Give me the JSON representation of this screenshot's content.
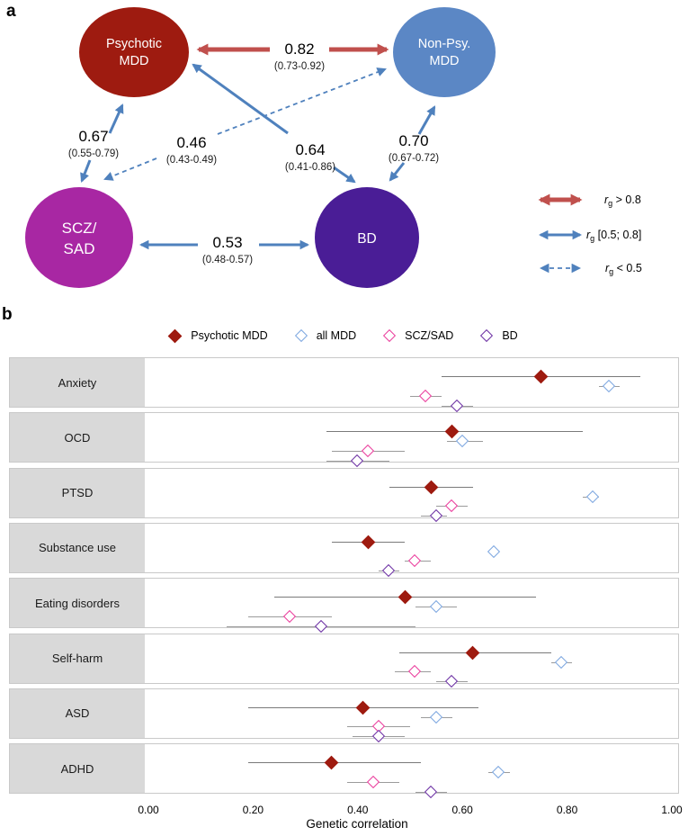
{
  "panel_a": {
    "label": "a",
    "nodes": [
      {
        "name": "Psychotic MDD",
        "line1": "Psychotic",
        "line2": "MDD",
        "color": "#9E1B10"
      },
      {
        "name": "Non-Psy. MDD",
        "line1": "Non-Psy.",
        "line2": "MDD",
        "color": "#5B87C5"
      },
      {
        "name": "SCZ/SAD",
        "line1": "SCZ/",
        "line2": "SAD",
        "color": "#A827A3"
      },
      {
        "name": "BD",
        "line1": "BD",
        "line2": "",
        "color": "#4A1D96"
      }
    ],
    "edges": [
      {
        "from": "Psychotic MDD",
        "to": "Non-Psy. MDD",
        "value": "0.82",
        "ci": "(0.73-0.92)",
        "style": "red-solid"
      },
      {
        "from": "Psychotic MDD",
        "to": "SCZ/SAD",
        "value": "0.67",
        "ci": "(0.55-0.79)",
        "style": "blue-solid"
      },
      {
        "from": "Non-Psy. MDD",
        "to": "SCZ/SAD",
        "value": "0.46",
        "ci": "(0.43-0.49)",
        "style": "blue-dashed"
      },
      {
        "from": "Psychotic MDD",
        "to": "BD",
        "value": "0.64",
        "ci": "(0.41-0.86)",
        "style": "blue-solid"
      },
      {
        "from": "Non-Psy. MDD",
        "to": "BD",
        "value": "0.70",
        "ci": "(0.67-0.72)",
        "style": "blue-solid"
      },
      {
        "from": "SCZ/SAD",
        "to": "BD",
        "value": "0.53",
        "ci": "(0.48-0.57)",
        "style": "blue-solid"
      }
    ],
    "legend": [
      {
        "r": "r",
        "sub": "g",
        "rest": " > 0.8",
        "style": "red-solid"
      },
      {
        "r": "r",
        "sub": "g",
        "rest": " [0.5; 0.8]",
        "style": "blue-solid"
      },
      {
        "r": "r",
        "sub": "g",
        "rest": " < 0.5",
        "style": "blue-dashed"
      }
    ],
    "colors": {
      "red_arrow": "#C0504D",
      "blue_arrow": "#4F81BD"
    }
  },
  "panel_b": {
    "label": "b"
  },
  "chart_data": {
    "type": "scatter",
    "subtype": "forest-plot",
    "xlabel": "Genetic correlation",
    "xlim": [
      0,
      1
    ],
    "xticks": [
      "0.00",
      "0.20",
      "0.40",
      "0.60",
      "0.80",
      "1.00"
    ],
    "grid": false,
    "legend_position": "top",
    "categories": [
      "Anxiety",
      "OCD",
      "PTSD",
      "Substance use",
      "Eating disorders",
      "Self-harm",
      "ASD",
      "ADHD"
    ],
    "series": [
      {
        "name": "Psychotic MDD",
        "marker": "filled-diamond",
        "color": "#9E1B10",
        "ci_color": "#7a7a7a",
        "values": [
          0.75,
          0.58,
          0.54,
          0.42,
          0.49,
          0.62,
          0.41,
          0.35
        ],
        "ci_low": [
          0.56,
          0.34,
          0.46,
          0.35,
          0.24,
          0.48,
          0.19,
          0.19
        ],
        "ci_high": [
          0.94,
          0.83,
          0.62,
          0.49,
          0.74,
          0.77,
          0.63,
          0.52
        ]
      },
      {
        "name": "all MDD",
        "marker": "open-diamond",
        "color": "#7CA6E0",
        "ci_color": "#9b9b9b",
        "values": [
          0.88,
          0.6,
          0.85,
          0.66,
          0.55,
          0.79,
          0.55,
          0.67
        ],
        "ci_low": [
          0.86,
          0.57,
          0.83,
          0.65,
          0.51,
          0.77,
          0.52,
          0.65
        ],
        "ci_high": [
          0.9,
          0.64,
          0.86,
          0.67,
          0.59,
          0.81,
          0.58,
          0.69
        ]
      },
      {
        "name": "SCZ/SAD",
        "marker": "open-diamond",
        "color": "#EA3C9C",
        "ci_color": "#9b9b9b",
        "values": [
          0.53,
          0.42,
          0.58,
          0.51,
          0.27,
          0.51,
          0.44,
          0.43
        ],
        "ci_low": [
          0.5,
          0.35,
          0.55,
          0.49,
          0.19,
          0.47,
          0.38,
          0.38
        ],
        "ci_high": [
          0.56,
          0.49,
          0.61,
          0.54,
          0.35,
          0.54,
          0.5,
          0.48
        ]
      },
      {
        "name": "BD",
        "marker": "open-diamond",
        "color": "#6B2FA3",
        "ci_color": "#9b9b9b",
        "values": [
          0.59,
          0.4,
          0.55,
          0.46,
          0.33,
          0.58,
          0.44,
          0.54
        ],
        "ci_low": [
          0.56,
          0.34,
          0.52,
          0.44,
          0.15,
          0.55,
          0.39,
          0.51
        ],
        "ci_high": [
          0.62,
          0.46,
          0.57,
          0.48,
          0.51,
          0.61,
          0.49,
          0.57
        ]
      }
    ]
  }
}
